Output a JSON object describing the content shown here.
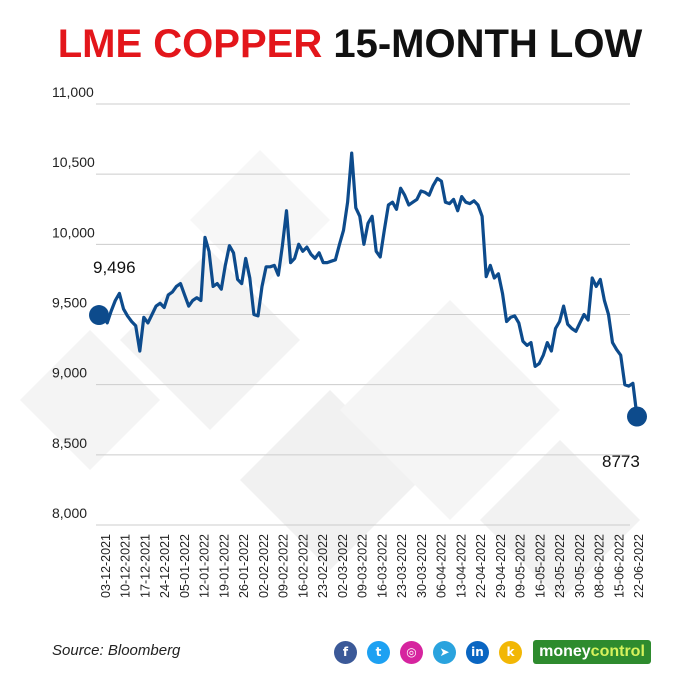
{
  "title": {
    "accent": "LME COPPER",
    "rest": "15-MONTH LOW"
  },
  "source": "Source: Bloomberg",
  "social_icons": [
    {
      "name": "facebook-icon",
      "glyph": "f",
      "color": "#3b5998"
    },
    {
      "name": "twitter-icon",
      "glyph": "t",
      "color": "#1da1f2"
    },
    {
      "name": "instagram-icon",
      "glyph": "◎",
      "color": "#d6249f"
    },
    {
      "name": "telegram-icon",
      "glyph": "➤",
      "color": "#2aa3de"
    },
    {
      "name": "linkedin-icon",
      "glyph": "in",
      "color": "#0a66c2"
    },
    {
      "name": "koo-icon",
      "glyph": "k",
      "color": "#f2b705"
    }
  ],
  "brand": {
    "part1": "money",
    "part2": "control"
  },
  "colors": {
    "line": "#0d4b8c",
    "title_accent": "#e3161b",
    "grid": "#cccccc"
  },
  "chart_data": {
    "type": "line",
    "title": "LME COPPER 15-MONTH LOW",
    "xlabel": "",
    "ylabel": "",
    "ylim": [
      8000,
      11000
    ],
    "yticks": [
      8000,
      8500,
      9000,
      9500,
      10000,
      10500,
      11000
    ],
    "ytick_labels": [
      "8,000",
      "8,500",
      "9,000",
      "9,500",
      "10,000",
      "10,500",
      "11,000"
    ],
    "xtick_labels": [
      "03-12-2021",
      "10-12-2021",
      "17-12-2021",
      "24-12-2021",
      "05-01-2022",
      "12-01-2022",
      "19-01-2022",
      "26-01-2022",
      "02-02-2022",
      "09-02-2022",
      "16-02-2022",
      "23-02-2022",
      "02-03-2022",
      "09-03-2022",
      "16-03-2022",
      "23-03-2022",
      "30-03-2022",
      "06-04-2022",
      "13-04-2022",
      "22-04-2022",
      "29-04-2022",
      "09-05-2022",
      "16-05-2022",
      "23-05-2022",
      "30-05-2022",
      "08-06-2022",
      "15-06-2022",
      "22-06-2022"
    ],
    "grid": true,
    "annotations": [
      {
        "label": "9,496",
        "index": 0
      },
      {
        "label": "8773",
        "index": "last"
      }
    ],
    "series": [
      {
        "values": [
          9496,
          9510,
          9440,
          9525,
          9600,
          9650,
          9540,
          9490,
          9450,
          9420,
          9240,
          9480,
          9440,
          9500,
          9560,
          9580,
          9550,
          9640,
          9660,
          9700,
          9720,
          9640,
          9560,
          9600,
          9620,
          9600,
          10050,
          9950,
          9700,
          9720,
          9680,
          9850,
          9990,
          9940,
          9750,
          9720,
          9900,
          9760,
          9500,
          9490,
          9700,
          9840,
          9840,
          9850,
          9780,
          9990,
          10240,
          9870,
          9900,
          10000,
          9950,
          9980,
          9930,
          9900,
          9940,
          9870,
          9870,
          9880,
          9890,
          10000,
          10100,
          10300,
          10650,
          10260,
          10200,
          10000,
          10150,
          10200,
          9950,
          9910,
          10100,
          10280,
          10300,
          10250,
          10400,
          10350,
          10280,
          10300,
          10320,
          10380,
          10370,
          10350,
          10420,
          10470,
          10450,
          10300,
          10290,
          10320,
          10240,
          10340,
          10300,
          10290,
          10310,
          10280,
          10200,
          9770,
          9850,
          9760,
          9790,
          9650,
          9450,
          9480,
          9490,
          9440,
          9310,
          9280,
          9300,
          9130,
          9150,
          9210,
          9300,
          9240,
          9400,
          9450,
          9560,
          9430,
          9400,
          9380,
          9440,
          9500,
          9460,
          9760,
          9700,
          9750,
          9600,
          9500,
          9300,
          9250,
          9210,
          9000,
          8990,
          9010,
          8773
        ]
      }
    ]
  }
}
